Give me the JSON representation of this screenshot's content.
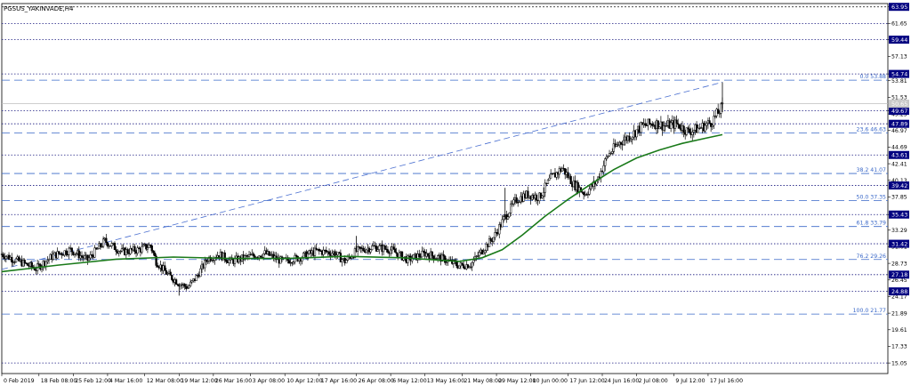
{
  "chart_data": {
    "type": "candlestick",
    "title": "PGSUS_YAKINVADE,H4",
    "ylim": [
      13.6,
      64.4
    ],
    "y_ticks": [
      "63.95",
      "61.65",
      "59.44",
      "57.13",
      "54.74",
      "53.81",
      "51.53",
      "49.67",
      "49.25",
      "46.97",
      "44.69",
      "42.41",
      "40.13",
      "37.85",
      "35.43",
      "33.29",
      "31.01",
      "28.73",
      "26.45",
      "24.17",
      "21.89",
      "19.61",
      "17.33",
      "15.05"
    ],
    "x_ticks": [
      {
        "label": "0 Feb 2019",
        "x": 0
      },
      {
        "label": "18 Feb 08:00",
        "x": 13
      },
      {
        "label": "25 Feb 12:00",
        "x": 25
      },
      {
        "label": "4 Mar 16:00",
        "x": 37
      },
      {
        "label": "12 Mar 08:00",
        "x": 50
      },
      {
        "label": "19 Mar 12:00",
        "x": 62
      },
      {
        "label": "26 Mar 16:00",
        "x": 74
      },
      {
        "label": "3 Apr 08:00",
        "x": 87
      },
      {
        "label": "10 Apr 12:00",
        "x": 99
      },
      {
        "label": "17 Apr 16:00",
        "x": 111
      },
      {
        "label": "26 Apr 08:00",
        "x": 124
      },
      {
        "label": "6 May 12:00",
        "x": 136
      },
      {
        "label": "13 May 16:00",
        "x": 148
      },
      {
        "label": "21 May 08:00",
        "x": 161
      },
      {
        "label": "29 May 12:00",
        "x": 173
      },
      {
        "label": "10 Jun 00:00",
        "x": 185
      },
      {
        "label": "17 Jun 12:00",
        "x": 198
      },
      {
        "label": "24 Jun 16:00",
        "x": 210
      },
      {
        "label": "2 Jul 08:00",
        "x": 222
      },
      {
        "label": "9 Jul 12:00",
        "x": 235
      },
      {
        "label": "17 Jul 16:00",
        "x": 247
      }
    ],
    "x_range": [
      0,
      260
    ],
    "price_labels": [
      {
        "value": 63.95,
        "label": "63.95"
      },
      {
        "value": 59.44,
        "label": "59.44"
      },
      {
        "value": 54.74,
        "label": "54.74"
      },
      {
        "value": 49.67,
        "label": "49.67"
      },
      {
        "value": 47.89,
        "label": "47.89"
      },
      {
        "value": 43.61,
        "label": "43.61"
      },
      {
        "value": 39.42,
        "label": "39.42"
      },
      {
        "value": 35.43,
        "label": "35.43"
      },
      {
        "value": 31.42,
        "label": "31.42"
      },
      {
        "value": 27.18,
        "label": "27.18"
      },
      {
        "value": 24.88,
        "label": "24.88"
      }
    ],
    "dotted_levels": [
      61.65,
      59.44,
      54.74,
      49.67,
      47.89,
      43.61,
      39.42,
      35.43,
      31.42,
      27.18,
      24.88,
      15.05
    ],
    "fibonacci": [
      {
        "label": "0.0 53.88",
        "value": 53.88
      },
      {
        "label": "23.6 46.63",
        "value": 46.63
      },
      {
        "label": "38.2 41.07",
        "value": 41.07
      },
      {
        "label": "50.0 37.35",
        "value": 37.35
      },
      {
        "label": "61.8 33.79",
        "value": 33.79
      },
      {
        "label": "76.2 29.26",
        "value": 29.26
      },
      {
        "label": "100.0 21.77",
        "value": 21.77
      }
    ],
    "current_price": "50.65",
    "trendline": {
      "from": {
        "x": 0,
        "y": 27.9
      },
      "to": {
        "x": 252,
        "y": 53.6
      }
    },
    "ma_points": [
      [
        0,
        27.6
      ],
      [
        20,
        28.5
      ],
      [
        40,
        29.3
      ],
      [
        60,
        29.6
      ],
      [
        80,
        29.4
      ],
      [
        100,
        29.4
      ],
      [
        120,
        29.7
      ],
      [
        140,
        29.5
      ],
      [
        160,
        29.0
      ],
      [
        168,
        29.5
      ],
      [
        175,
        30.6
      ],
      [
        182,
        32.6
      ],
      [
        190,
        35.2
      ],
      [
        198,
        37.5
      ],
      [
        206,
        39.6
      ],
      [
        214,
        41.6
      ],
      [
        222,
        43.2
      ],
      [
        230,
        44.3
      ],
      [
        238,
        45.2
      ],
      [
        246,
        45.9
      ],
      [
        252,
        46.4
      ]
    ],
    "candle_path": [
      [
        0,
        30.0
      ],
      [
        6,
        29.0
      ],
      [
        12,
        28.0
      ],
      [
        18,
        29.8
      ],
      [
        24,
        30.6
      ],
      [
        30,
        29.2
      ],
      [
        36,
        31.8
      ],
      [
        42,
        30.3
      ],
      [
        48,
        30.6
      ],
      [
        52,
        31.2
      ],
      [
        54,
        29.0
      ],
      [
        58,
        27.2
      ],
      [
        62,
        26.0
      ],
      [
        65,
        25.4
      ],
      [
        68,
        26.8
      ],
      [
        72,
        29.4
      ],
      [
        76,
        30.0
      ],
      [
        80,
        29.0
      ],
      [
        86,
        29.6
      ],
      [
        92,
        30.1
      ],
      [
        98,
        29.0
      ],
      [
        104,
        29.5
      ],
      [
        110,
        30.4
      ],
      [
        116,
        30.2
      ],
      [
        120,
        29.0
      ],
      [
        124,
        30.4
      ],
      [
        130,
        31.0
      ],
      [
        136,
        30.6
      ],
      [
        142,
        29.2
      ],
      [
        148,
        30.1
      ],
      [
        154,
        29.4
      ],
      [
        160,
        28.4
      ],
      [
        164,
        28.6
      ],
      [
        168,
        30.5
      ],
      [
        172,
        32.3
      ],
      [
        176,
        35.1
      ],
      [
        180,
        37.5
      ],
      [
        184,
        38.2
      ],
      [
        188,
        37.8
      ],
      [
        192,
        40.4
      ],
      [
        196,
        41.8
      ],
      [
        200,
        39.6
      ],
      [
        204,
        38.3
      ],
      [
        208,
        40.0
      ],
      [
        212,
        43.6
      ],
      [
        216,
        45.3
      ],
      [
        220,
        46.3
      ],
      [
        224,
        47.6
      ],
      [
        228,
        48.0
      ],
      [
        232,
        47.6
      ],
      [
        236,
        47.9
      ],
      [
        240,
        46.8
      ],
      [
        244,
        47.3
      ],
      [
        248,
        48.1
      ],
      [
        252,
        50.2
      ]
    ],
    "spikes": [
      {
        "x": 62,
        "low": 24.3
      },
      {
        "x": 176,
        "high": 39.1
      },
      {
        "x": 124,
        "high": 32.5
      }
    ],
    "colors": {
      "candle": "#000000",
      "ma": "#1a7a1a",
      "trendline": "#4a6fd0",
      "fib": "#3a68c8",
      "level": "#1a1a80",
      "label_bg": "#000080",
      "label_text": "#ffffff",
      "current_bg": "#c8c8c8"
    }
  }
}
